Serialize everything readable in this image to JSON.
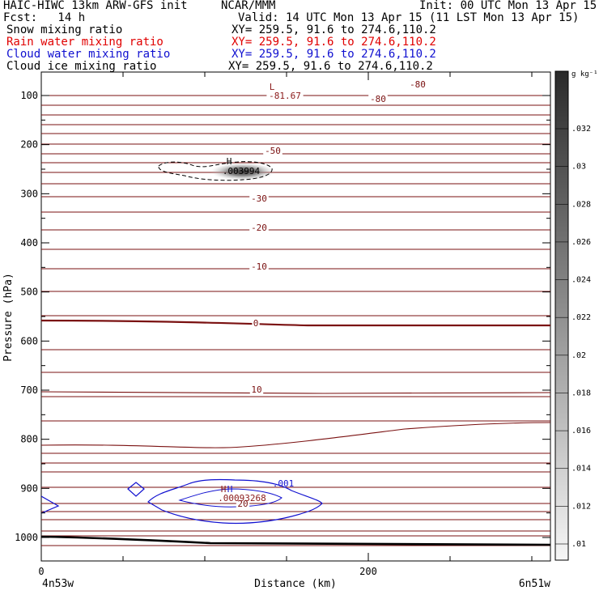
{
  "header": {
    "model": "HAIC-HIWC 13km ARW-GFS init",
    "center": "NCAR/MMM",
    "init": "Init: 00 UTC Mon 13 Apr 15",
    "fcst": "Fcst:   14 h",
    "valid": "Valid: 14 UTC Mon 13 Apr 15 (11 LST Mon 13 Apr 15)",
    "fields": [
      {
        "name": "Snow mixing ratio",
        "xy": "XY= 259.5, 91.6 to 274.6,110.2",
        "color": "#000000"
      },
      {
        "name": "Rain water mixing ratio",
        "xy": "XY= 259.5, 91.6 to 274.6,110.2",
        "color": "#e00000"
      },
      {
        "name": "Cloud water mixing ratio",
        "xy": "XY= 259.5, 91.6 to 274.6,110.2",
        "color": "#1010d0"
      },
      {
        "name": "Cloud ice mixing ratio",
        "xy": "XY= 259.5, 91.6 to 274.6,110.2",
        "color": "#000000"
      }
    ]
  },
  "chart_data": {
    "type": "contour cross-section",
    "ylabel": "Pressure (hPa)",
    "xlabel": "Distance (km)",
    "y_ticks": [
      100,
      200,
      300,
      400,
      500,
      600,
      700,
      800,
      900,
      1000
    ],
    "x_ticks": [
      0,
      200
    ],
    "x_range_km": [
      0,
      310
    ],
    "endpoint_left": "4n53w",
    "endpoint_right": "6n51w",
    "colorbar": {
      "unit": "g kg⁻¹",
      "labels": [
        ".032",
        ".03",
        ".028",
        ".026",
        ".024",
        ".022",
        ".02",
        ".018",
        ".016",
        ".014",
        ".012",
        ".01"
      ]
    },
    "temperature_labels": [
      "-80",
      "-80",
      "-50",
      "-30",
      "-20",
      "-10",
      "0",
      "10",
      "20"
    ],
    "extrema_labels": [
      {
        "mark": "L",
        "value": "-81.67",
        "color": "#8b1a1a"
      },
      {
        "mark": "H",
        "value": ".003994",
        "color": "#000000"
      },
      {
        "mark": "H",
        "value": ".00093268",
        "color": "#8b1a1a"
      },
      {
        "mark": "H",
        "value": "",
        "color": "#1010d0"
      }
    ],
    "cloud_water_label": ".001",
    "snow_max_g_per_kg": 0.003994,
    "rain_max_g_per_kg": 0.00093268
  }
}
